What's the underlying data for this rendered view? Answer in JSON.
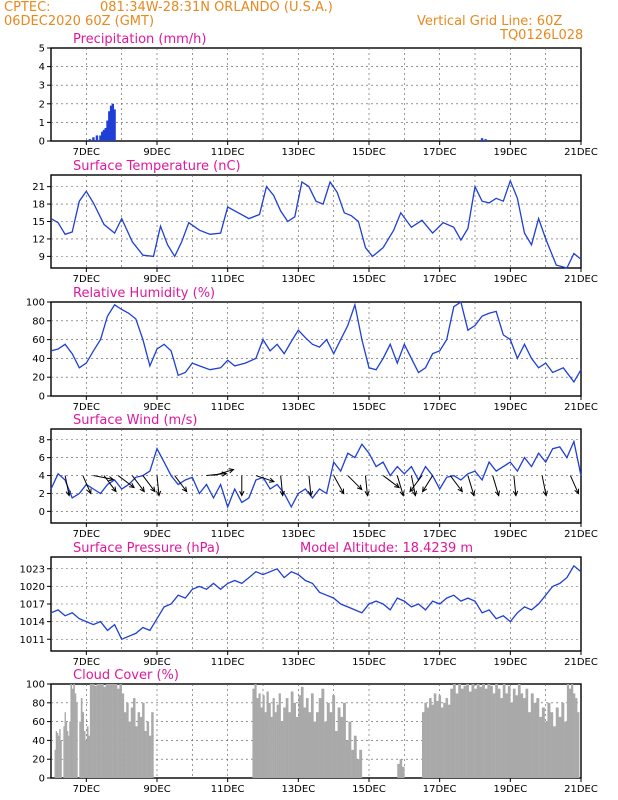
{
  "header": {
    "source": "CPTEC:",
    "location": "081:34W-28:31N  ORLANDO (U.S.A.)",
    "run": "06DEC2020 60Z (GMT)",
    "grid_note": "Vertical Grid Line: 60Z",
    "code": "TQ0126L028"
  },
  "colors": {
    "line": "#1f3fd6",
    "bar_precip": "#1f3fd6",
    "bar_cloud": "#a9a9a9",
    "title": "#e0189c",
    "header": "#e8891e"
  },
  "x_axis": {
    "start": "06DEC2020 00Z",
    "end": "21DEC2020 00Z",
    "tick_labels": [
      "7DEC",
      "9DEC",
      "11DEC",
      "13DEC",
      "15DEC",
      "17DEC",
      "19DEC",
      "21DEC"
    ],
    "tick_days": [
      7,
      9,
      11,
      13,
      15,
      17,
      19,
      21
    ]
  },
  "chart_data": [
    {
      "type": "bar",
      "title": "Precipitation (mm/h)",
      "ylim": [
        0,
        5
      ],
      "yticks": [
        "0",
        "1",
        "2",
        "3",
        "4",
        "5"
      ],
      "ytick_values": [
        0,
        1,
        2,
        3,
        4,
        5
      ],
      "x_days": [
        7.1,
        7.2,
        7.3,
        7.4,
        7.45,
        7.5,
        7.55,
        7.6,
        7.65,
        7.7,
        7.75,
        7.8,
        18.2,
        18.3
      ],
      "values": [
        0.1,
        0.2,
        0.3,
        0.3,
        0.5,
        0.6,
        0.7,
        1.1,
        1.6,
        1.9,
        2.0,
        1.7,
        0.15,
        0.1
      ]
    },
    {
      "type": "line",
      "title": "Surface Temperature (nC)",
      "ylim": [
        7,
        23
      ],
      "yticks": [
        "9",
        "12",
        "15",
        "18",
        "21"
      ],
      "ytick_values": [
        9,
        12,
        15,
        18,
        21
      ],
      "x_days": [
        6.0,
        6.2,
        6.4,
        6.6,
        6.8,
        7.0,
        7.2,
        7.5,
        7.8,
        8.0,
        8.3,
        8.6,
        8.9,
        9.1,
        9.3,
        9.5,
        9.7,
        9.9,
        10.2,
        10.5,
        10.8,
        11.0,
        11.3,
        11.6,
        11.9,
        12.1,
        12.3,
        12.5,
        12.7,
        12.9,
        13.1,
        13.3,
        13.5,
        13.7,
        13.9,
        14.1,
        14.3,
        14.5,
        14.7,
        14.9,
        15.1,
        15.4,
        15.7,
        15.9,
        16.2,
        16.5,
        16.8,
        17.1,
        17.4,
        17.6,
        17.8,
        18.0,
        18.2,
        18.4,
        18.6,
        18.8,
        19.0,
        19.2,
        19.4,
        19.6,
        19.8,
        20.0,
        20.3,
        20.6,
        20.8,
        21.0
      ],
      "values": [
        15.5,
        14.8,
        12.8,
        13.2,
        18.5,
        20.2,
        18.2,
        14.5,
        13.0,
        15.5,
        11.5,
        9.2,
        9.0,
        14.2,
        11.0,
        9.0,
        11.5,
        14.8,
        13.5,
        12.8,
        13.0,
        17.5,
        16.5,
        15.5,
        16.2,
        21.0,
        19.5,
        16.8,
        15.0,
        15.8,
        21.8,
        21.0,
        18.5,
        18.0,
        21.8,
        20.0,
        16.5,
        16.0,
        15.0,
        10.5,
        9.0,
        10.5,
        13.5,
        16.5,
        14.0,
        15.2,
        13.0,
        14.8,
        14.0,
        11.8,
        13.8,
        21.0,
        18.5,
        18.2,
        19.0,
        18.5,
        22.0,
        19.0,
        13.0,
        11.0,
        15.5,
        12.0,
        7.5,
        7.0,
        9.5,
        8.5
      ]
    },
    {
      "type": "line",
      "title": "Relative Humidity (%)",
      "ylim": [
        0,
        100
      ],
      "yticks": [
        "0",
        "20",
        "40",
        "60",
        "80",
        "100"
      ],
      "ytick_values": [
        0,
        20,
        40,
        60,
        80,
        100
      ],
      "x_days": [
        6.0,
        6.2,
        6.4,
        6.6,
        6.8,
        7.0,
        7.2,
        7.4,
        7.6,
        7.8,
        8.0,
        8.2,
        8.4,
        8.6,
        8.8,
        9.0,
        9.2,
        9.4,
        9.6,
        9.8,
        10.0,
        10.2,
        10.5,
        10.8,
        11.0,
        11.2,
        11.5,
        11.8,
        12.0,
        12.2,
        12.4,
        12.6,
        12.8,
        13.0,
        13.2,
        13.4,
        13.6,
        13.8,
        14.0,
        14.2,
        14.4,
        14.6,
        14.8,
        15.0,
        15.2,
        15.4,
        15.6,
        15.8,
        16.0,
        16.2,
        16.4,
        16.6,
        16.8,
        17.0,
        17.2,
        17.4,
        17.6,
        17.8,
        18.0,
        18.2,
        18.4,
        18.6,
        18.8,
        19.0,
        19.2,
        19.4,
        19.6,
        19.8,
        20.0,
        20.2,
        20.5,
        20.8,
        21.0
      ],
      "values": [
        48,
        50,
        55,
        45,
        30,
        35,
        48,
        60,
        85,
        97,
        92,
        88,
        82,
        60,
        32,
        50,
        55,
        48,
        22,
        25,
        35,
        32,
        28,
        30,
        38,
        32,
        35,
        40,
        60,
        48,
        55,
        45,
        58,
        70,
        62,
        55,
        52,
        60,
        45,
        60,
        75,
        97,
        60,
        30,
        28,
        40,
        55,
        35,
        55,
        40,
        25,
        30,
        45,
        48,
        60,
        95,
        100,
        70,
        75,
        85,
        88,
        90,
        65,
        60,
        40,
        55,
        40,
        30,
        35,
        25,
        30,
        15,
        28
      ]
    },
    {
      "type": "line",
      "title": "Surface Wind (m/s)",
      "ylim": [
        -1.3,
        9.2
      ],
      "yticks": [
        "0",
        "2",
        "4",
        "6",
        "8"
      ],
      "ytick_values": [
        0,
        2,
        4,
        6,
        8
      ],
      "x_days": [
        6.0,
        6.2,
        6.4,
        6.6,
        6.8,
        7.0,
        7.2,
        7.4,
        7.6,
        7.8,
        8.0,
        8.2,
        8.4,
        8.6,
        8.8,
        9.0,
        9.2,
        9.4,
        9.6,
        9.8,
        10.0,
        10.2,
        10.4,
        10.6,
        10.8,
        11.0,
        11.2,
        11.4,
        11.6,
        11.8,
        12.0,
        12.2,
        12.4,
        12.6,
        12.8,
        13.0,
        13.2,
        13.4,
        13.6,
        13.8,
        14.0,
        14.2,
        14.4,
        14.6,
        14.8,
        15.0,
        15.2,
        15.4,
        15.6,
        15.8,
        16.0,
        16.2,
        16.4,
        16.6,
        16.8,
        17.0,
        17.2,
        17.4,
        17.6,
        17.8,
        18.0,
        18.2,
        18.4,
        18.6,
        18.8,
        19.0,
        19.2,
        19.4,
        19.6,
        19.8,
        20.0,
        20.2,
        20.4,
        20.6,
        20.8,
        21.0
      ],
      "values": [
        2.5,
        4.2,
        3.5,
        1.5,
        2.0,
        3.0,
        2.5,
        2.0,
        3.0,
        3.5,
        2.5,
        3.0,
        3.8,
        4.0,
        4.5,
        7.0,
        5.5,
        4.0,
        3.0,
        3.5,
        3.8,
        2.0,
        3.0,
        1.5,
        3.0,
        0.5,
        2.5,
        1.0,
        1.5,
        3.5,
        3.8,
        2.5,
        3.0,
        2.0,
        0.5,
        2.0,
        2.5,
        1.5,
        2.5,
        2.0,
        5.5,
        4.5,
        6.5,
        6.0,
        7.5,
        6.5,
        5.0,
        5.5,
        4.0,
        5.0,
        4.2,
        5.0,
        3.5,
        5.0,
        4.0,
        2.5,
        3.8,
        4.0,
        3.5,
        4.2,
        4.5,
        3.5,
        5.5,
        4.5,
        5.0,
        5.5,
        4.5,
        6.0,
        5.0,
        6.5,
        5.5,
        7.0,
        7.2,
        6.0,
        7.8,
        4.0
      ]
    },
    {
      "type": "line",
      "title": "Surface Pressure (hPa)",
      "subtitle": "Model Altitude: 18.4239 m",
      "ylim": [
        1009,
        1025
      ],
      "yticks": [
        "1011",
        "1014",
        "1017",
        "1020",
        "1023"
      ],
      "ytick_values": [
        1011,
        1014,
        1017,
        1020,
        1023
      ],
      "x_days": [
        6.0,
        6.2,
        6.4,
        6.6,
        6.8,
        7.0,
        7.2,
        7.4,
        7.6,
        7.8,
        8.0,
        8.2,
        8.4,
        8.6,
        8.8,
        9.0,
        9.2,
        9.4,
        9.6,
        9.8,
        10.0,
        10.2,
        10.4,
        10.6,
        10.8,
        11.0,
        11.2,
        11.4,
        11.6,
        11.8,
        12.0,
        12.2,
        12.4,
        12.6,
        12.8,
        13.0,
        13.2,
        13.4,
        13.6,
        13.8,
        14.0,
        14.2,
        14.4,
        14.6,
        14.8,
        15.0,
        15.2,
        15.4,
        15.6,
        15.8,
        16.0,
        16.2,
        16.4,
        16.6,
        16.8,
        17.0,
        17.2,
        17.4,
        17.6,
        17.8,
        18.0,
        18.2,
        18.4,
        18.6,
        18.8,
        19.0,
        19.2,
        19.4,
        19.6,
        19.8,
        20.0,
        20.2,
        20.4,
        20.6,
        20.8,
        21.0
      ],
      "values": [
        1015.5,
        1016.0,
        1015.0,
        1015.5,
        1014.5,
        1014.0,
        1013.5,
        1014.0,
        1012.5,
        1013.5,
        1011.0,
        1011.5,
        1012.0,
        1013.0,
        1012.5,
        1014.5,
        1016.5,
        1017.0,
        1018.5,
        1018.0,
        1019.5,
        1020.0,
        1019.5,
        1020.5,
        1019.5,
        1020.5,
        1021.0,
        1020.5,
        1021.5,
        1022.5,
        1022.0,
        1022.5,
        1023.0,
        1021.5,
        1022.5,
        1022.0,
        1021.0,
        1020.5,
        1019.0,
        1018.5,
        1018.0,
        1017.0,
        1016.5,
        1016.0,
        1015.5,
        1017.0,
        1017.5,
        1017.0,
        1016.0,
        1018.0,
        1017.5,
        1016.5,
        1017.0,
        1016.0,
        1017.5,
        1017.0,
        1018.0,
        1018.5,
        1017.5,
        1018.0,
        1017.5,
        1015.5,
        1016.0,
        1014.5,
        1015.0,
        1014.0,
        1015.5,
        1016.5,
        1016.0,
        1017.0,
        1018.5,
        1020.0,
        1020.5,
        1021.5,
        1023.5,
        1022.5
      ]
    },
    {
      "type": "bar",
      "title": "Cloud Cover (%)",
      "ylim": [
        0,
        100
      ],
      "yticks": [
        "0",
        "20",
        "40",
        "60",
        "80",
        "100"
      ],
      "ytick_values": [
        0,
        20,
        40,
        60,
        80,
        100
      ],
      "segments": [
        {
          "from": 6.1,
          "to": 6.3,
          "values": [
            30,
            50,
            48,
            45,
            52,
            40
          ]
        },
        {
          "from": 6.35,
          "to": 6.55,
          "values": [
            55,
            70,
            60,
            50,
            45,
            60
          ]
        },
        {
          "from": 6.55,
          "to": 6.75,
          "values": [
            100,
            95,
            100,
            90,
            80
          ]
        },
        {
          "from": 6.8,
          "to": 7.1,
          "values": [
            60,
            85,
            70,
            50,
            40,
            55,
            45
          ]
        },
        {
          "from": 7.1,
          "to": 8.0,
          "values": [
            100,
            100,
            98,
            100,
            100,
            100,
            97,
            100,
            100,
            100,
            100,
            100,
            95,
            100
          ]
        },
        {
          "from": 8.0,
          "to": 8.9,
          "values": [
            90,
            70,
            80,
            60,
            75,
            85,
            55,
            70,
            65,
            80,
            50,
            60,
            45,
            70
          ]
        },
        {
          "from": 11.7,
          "to": 12.5,
          "values": [
            95,
            100,
            85,
            90,
            75,
            88,
            70,
            92,
            80,
            65,
            85,
            70,
            78,
            90
          ]
        },
        {
          "from": 12.5,
          "to": 13.5,
          "values": [
            60,
            75,
            85,
            70,
            92,
            80,
            65,
            88,
            97,
            75,
            85,
            70,
            90,
            60
          ]
        },
        {
          "from": 13.5,
          "to": 14.8,
          "values": [
            70,
            85,
            95,
            60,
            80,
            70,
            88,
            50,
            75,
            65,
            80,
            40,
            60,
            30,
            45,
            20,
            30
          ]
        },
        {
          "from": 15.8,
          "to": 16.0,
          "values": [
            15,
            20,
            12
          ]
        },
        {
          "from": 16.5,
          "to": 17.3,
          "values": [
            70,
            80,
            75,
            85,
            78,
            90,
            82,
            88,
            75,
            80,
            85,
            78
          ]
        },
        {
          "from": 17.3,
          "to": 18.5,
          "values": [
            95,
            100,
            90,
            100,
            95,
            98,
            100,
            92,
            100,
            95,
            100,
            97,
            100,
            95,
            100,
            98
          ]
        },
        {
          "from": 18.5,
          "to": 19.5,
          "values": [
            90,
            100,
            95,
            85,
            100,
            90,
            98,
            80,
            95,
            88,
            100,
            90,
            85,
            95
          ]
        },
        {
          "from": 19.5,
          "to": 20.6,
          "values": [
            70,
            90,
            80,
            85,
            65,
            75,
            60,
            80,
            70,
            55,
            75,
            65,
            80,
            60
          ]
        },
        {
          "from": 20.6,
          "to": 20.95,
          "values": [
            100,
            95,
            100,
            90,
            85,
            70
          ]
        }
      ]
    }
  ],
  "wind_arrows": [
    {
      "x_day": 6.4,
      "u": 0.2,
      "v": -1.0
    },
    {
      "x_day": 6.9,
      "u": 0.4,
      "v": -0.9
    },
    {
      "x_day": 7.2,
      "u": 1.0,
      "v": -0.2
    },
    {
      "x_day": 7.5,
      "u": 0.6,
      "v": -0.8
    },
    {
      "x_day": 7.9,
      "u": 0.8,
      "v": -0.6
    },
    {
      "x_day": 8.3,
      "u": 0.6,
      "v": -0.8
    },
    {
      "x_day": 8.6,
      "u": 0.6,
      "v": -0.8
    },
    {
      "x_day": 9.0,
      "u": 0.1,
      "v": -1.0
    },
    {
      "x_day": 9.5,
      "u": 0.6,
      "v": -0.8
    },
    {
      "x_day": 10.4,
      "u": 1.0,
      "v": 0.1
    },
    {
      "x_day": 10.6,
      "u": 1.0,
      "v": 0.3
    },
    {
      "x_day": 11.4,
      "u": 0.0,
      "v": -1.0
    },
    {
      "x_day": 11.8,
      "u": 0.9,
      "v": -0.3
    },
    {
      "x_day": 12.5,
      "u": 0.1,
      "v": -1.0
    },
    {
      "x_day": 13.3,
      "u": 0.1,
      "v": -1.0
    },
    {
      "x_day": 14.0,
      "u": 0.5,
      "v": -0.9
    },
    {
      "x_day": 14.4,
      "u": 0.7,
      "v": -0.7
    },
    {
      "x_day": 14.9,
      "u": 0.1,
      "v": -1.0
    },
    {
      "x_day": 15.4,
      "u": 0.8,
      "v": -0.6
    },
    {
      "x_day": 15.8,
      "u": 0.3,
      "v": -1.0
    },
    {
      "x_day": 16.2,
      "u": 0.2,
      "v": -1.0
    },
    {
      "x_day": 16.5,
      "u": -0.6,
      "v": -0.8
    },
    {
      "x_day": 16.8,
      "u": -0.5,
      "v": -0.8
    },
    {
      "x_day": 17.3,
      "u": 0.6,
      "v": -0.8
    },
    {
      "x_day": 17.8,
      "u": 0.3,
      "v": -1.0
    },
    {
      "x_day": 18.5,
      "u": 0.3,
      "v": -1.0
    },
    {
      "x_day": 19.1,
      "u": 0.1,
      "v": -1.0
    },
    {
      "x_day": 19.9,
      "u": 0.2,
      "v": -1.0
    },
    {
      "x_day": 20.7,
      "u": 0.4,
      "v": -0.9
    }
  ]
}
